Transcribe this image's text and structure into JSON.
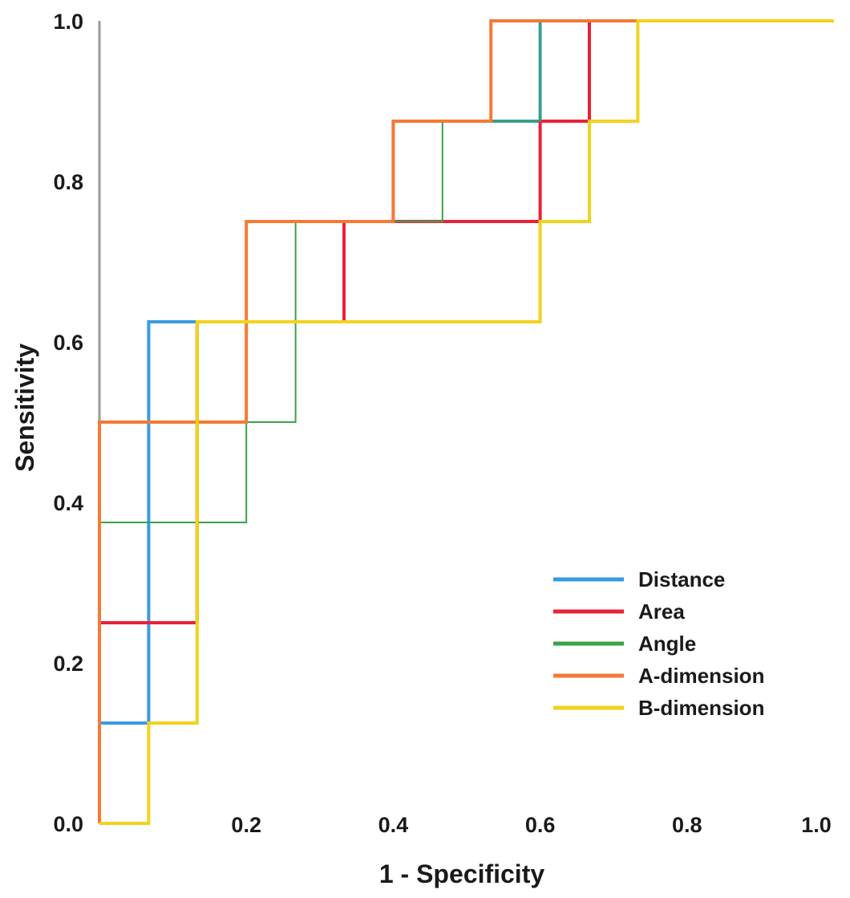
{
  "chart_data": {
    "type": "line",
    "xlabel": "1 - Specificity",
    "ylabel": "Sensitivity",
    "xlim": [
      0,
      1
    ],
    "ylim": [
      0,
      1
    ],
    "x_ticks": [
      "0.0",
      "0.2",
      "0.4",
      "0.6",
      "0.8",
      "1.0"
    ],
    "y_ticks": [
      "0.0",
      "0.2",
      "0.4",
      "0.6",
      "0.8",
      "1.0"
    ],
    "grid": false,
    "legend_position": "bottom-right",
    "series": [
      {
        "name": "Distance",
        "color": "#3a9be0",
        "x": [
          0,
          0,
          0.067,
          0.067,
          0.333,
          0.333,
          0.4,
          0.4,
          0.467,
          0.467,
          0.533,
          0.533,
          0.6,
          0.6,
          0.667,
          0.667,
          1.0
        ],
        "y": [
          0,
          0.125,
          0.125,
          0.625,
          0.625,
          0.75,
          0.75,
          0.875,
          0.875,
          0.875,
          0.875,
          0.875,
          0.875,
          1.0,
          1.0,
          1.0,
          1.0
        ]
      },
      {
        "name": "Area",
        "color": "#e8223a",
        "x": [
          0,
          0,
          0.133,
          0.133,
          0.333,
          0.333,
          0.6,
          0.6,
          0.667,
          0.667,
          1.0
        ],
        "y": [
          0,
          0.25,
          0.25,
          0.625,
          0.625,
          0.75,
          0.75,
          0.875,
          0.875,
          1.0,
          1.0
        ]
      },
      {
        "name": "Angle",
        "color": "#3aa34a",
        "x": [
          0,
          0,
          0.2,
          0.2,
          0.267,
          0.267,
          0.467,
          0.467,
          0.6,
          0.6,
          1.0
        ],
        "y": [
          0,
          0.375,
          0.375,
          0.5,
          0.5,
          0.75,
          0.75,
          0.875,
          0.875,
          1.0,
          1.0
        ]
      },
      {
        "name": "A-dimension",
        "color": "#f47a35",
        "x": [
          0,
          0,
          0.2,
          0.2,
          0.4,
          0.4,
          0.533,
          0.533,
          1.0
        ],
        "y": [
          0,
          0.5,
          0.5,
          0.75,
          0.75,
          0.875,
          0.875,
          1.0,
          1.0
        ]
      },
      {
        "name": "B-dimension",
        "color": "#f2d21e",
        "x": [
          0,
          0.067,
          0.067,
          0.133,
          0.133,
          0.6,
          0.6,
          0.667,
          0.667,
          0.733,
          0.733,
          1.0
        ],
        "y": [
          0,
          0,
          0.125,
          0.125,
          0.625,
          0.625,
          0.75,
          0.75,
          0.875,
          0.875,
          1.0,
          1.0
        ]
      }
    ]
  }
}
